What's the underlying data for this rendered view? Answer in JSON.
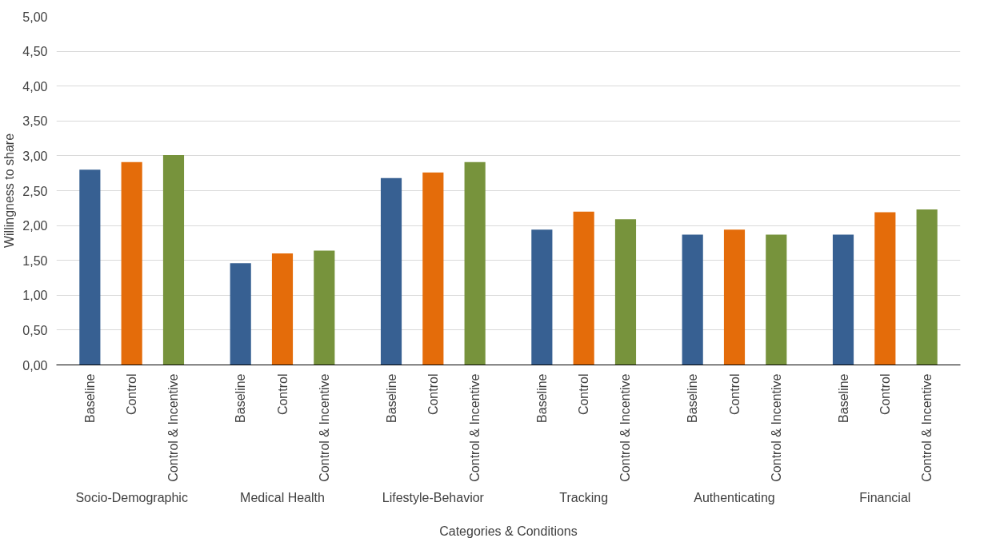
{
  "chart_data": {
    "type": "bar",
    "xlabel": "Categories & Conditions",
    "ylabel": "Willingness to share",
    "categories": [
      "Baseline",
      "Control",
      "Control & Incentive",
      "Baseline",
      "Control",
      "Control & Incentive",
      "Baseline",
      "Control",
      "Control & Incentive",
      "Baseline",
      "Control",
      "Control & Incentive",
      "Baseline",
      "Control",
      "Control & Incentive",
      "Baseline",
      "Control",
      "Control & Incentive"
    ],
    "values": [
      2.8,
      2.91,
      3.01,
      1.46,
      1.6,
      1.64,
      2.68,
      2.76,
      2.91,
      1.94,
      2.2,
      2.09,
      1.87,
      1.94,
      1.87,
      1.87,
      2.19,
      2.23
    ],
    "colors": [
      "#376092",
      "#e46c0a",
      "#77933c",
      "#376092",
      "#e46c0a",
      "#77933c",
      "#376092",
      "#e46c0a",
      "#77933c",
      "#376092",
      "#e46c0a",
      "#77933c",
      "#376092",
      "#e46c0a",
      "#77933c",
      "#376092",
      "#e46c0a",
      "#77933c"
    ],
    "annotations": [
      "Socio-Demographic",
      "Medical Health",
      "Lifestyle-Behavior",
      "Tracking",
      "Authenticating",
      "Financial"
    ],
    "ylim": [
      0,
      5
    ],
    "yticks": [
      {
        "value": 0,
        "label": "0,00"
      },
      {
        "value": 0.5,
        "label": "0,50"
      },
      {
        "value": 1,
        "label": "1,00"
      },
      {
        "value": 1.5,
        "label": "1,50"
      },
      {
        "value": 2,
        "label": "2,00"
      },
      {
        "value": 2.5,
        "label": "2,50"
      },
      {
        "value": 3,
        "label": "3,00"
      },
      {
        "value": 3.5,
        "label": "3,50"
      },
      {
        "value": 4,
        "label": "4,00"
      },
      {
        "value": 4.5,
        "label": "4,50"
      },
      {
        "value": 5,
        "label": "5,00"
      }
    ],
    "grid": "y"
  }
}
